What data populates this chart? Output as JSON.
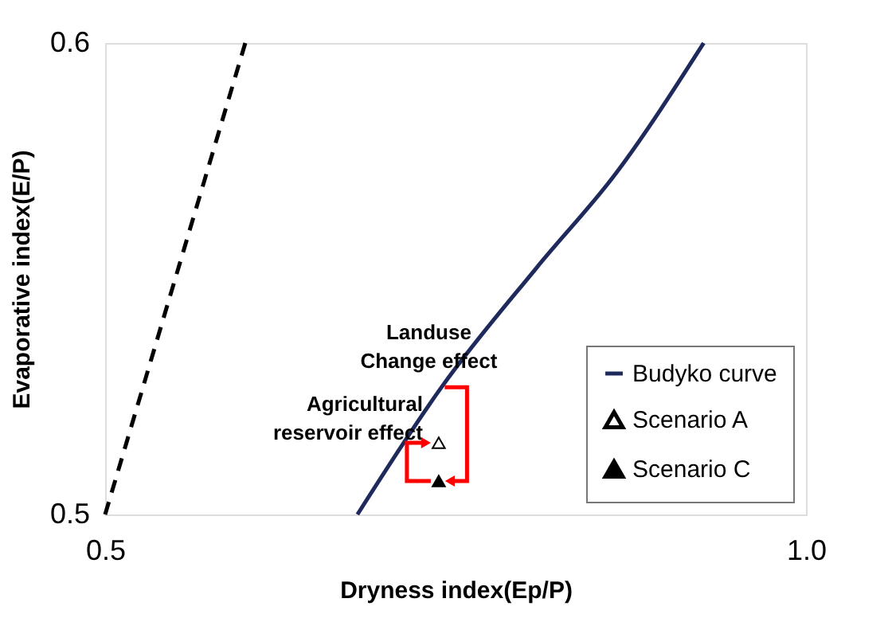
{
  "chart_data": {
    "type": "line",
    "xlabel": "Dryness  index(Ep/P)",
    "ylabel": "Evaporative  index(E/P)",
    "xlim": [
      0.5,
      1.0
    ],
    "ylim": [
      0.5,
      0.6
    ],
    "xticks": [
      0.5,
      {
        "value": 1.0,
        "label": "1.0"
      }
    ],
    "yticks": [
      0.5,
      0.6
    ],
    "legend": "bottom right",
    "series": [
      {
        "name": "Budyko curve",
        "color": "#1f2a5c",
        "line_style": "solid",
        "x": [
          0.68,
          0.74,
          0.808,
          0.865,
          0.927
        ],
        "values": [
          0.5,
          0.527,
          0.5524,
          0.5726,
          0.6
        ]
      },
      {
        "color": "#000000",
        "line_style": "dashed",
        "x": [
          0.5,
          0.6
        ],
        "values": [
          0.5,
          0.6
        ]
      },
      {
        "name": "Scenario A",
        "type": "scatter",
        "marker": "triangle",
        "color": "#ffffff",
        "x": [
          0.738
        ],
        "values": [
          0.5152
        ]
      },
      {
        "name": "Scenario C",
        "type": "scatter",
        "marker": "triangle",
        "color": "#000000",
        "x": [
          0.738
        ],
        "values": [
          0.5071
        ]
      }
    ],
    "annotations": [
      {
        "text": "Landuse\nChange effect",
        "x": 0.74,
        "y": 0.527
      },
      {
        "text": "Agricultural\nreservoir effect",
        "x": 0.738,
        "y": 0.5152
      }
    ]
  }
}
